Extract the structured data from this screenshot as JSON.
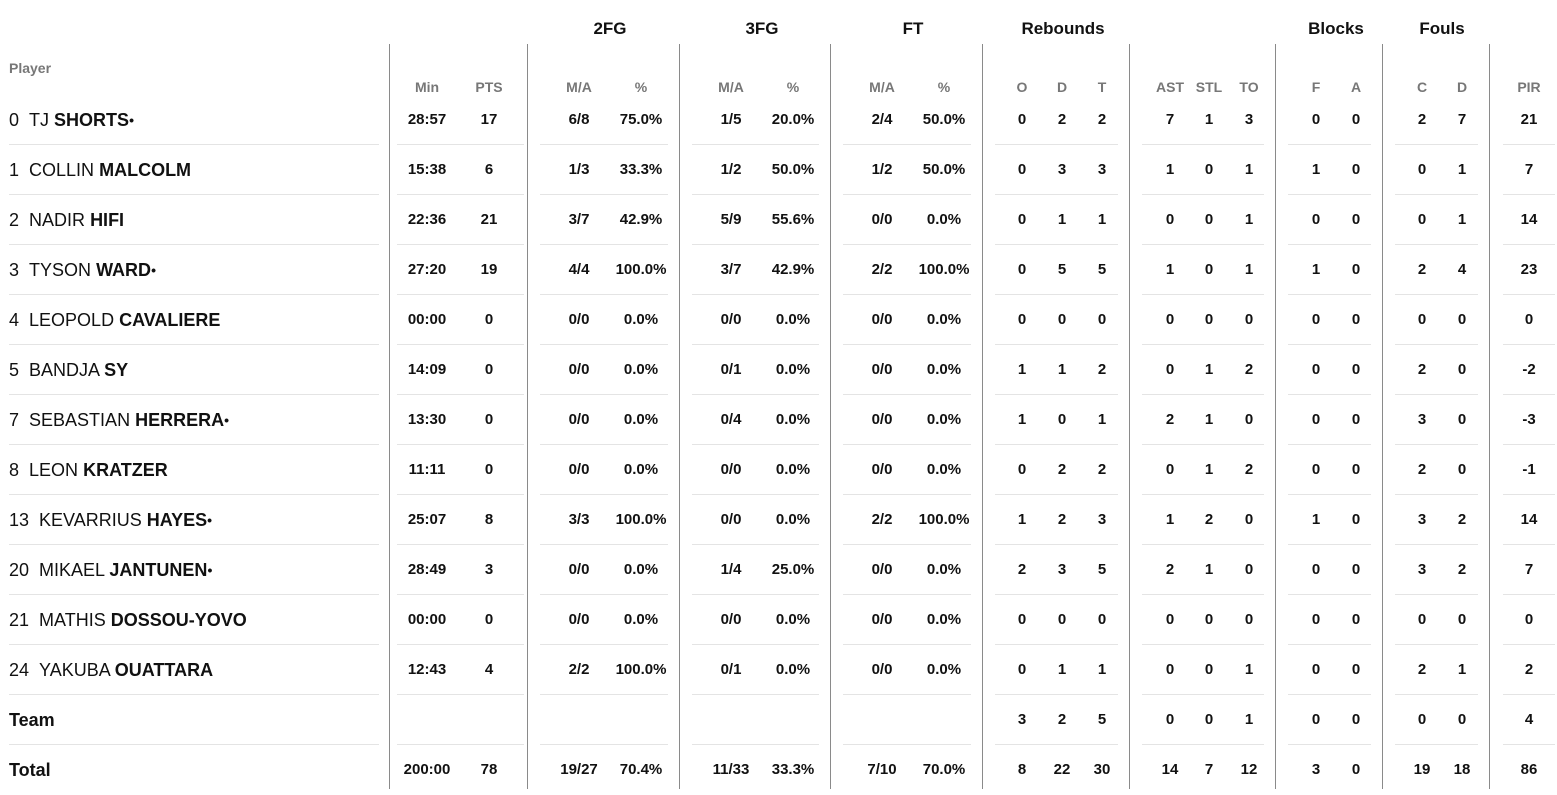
{
  "header": {
    "player": "Player",
    "groups": {
      "fg2": "2FG",
      "fg3": "3FG",
      "ft": "FT",
      "rebounds": "Rebounds",
      "blocks": "Blocks",
      "fouls": "Fouls"
    },
    "sub": {
      "min": "Min",
      "pts": "PTS",
      "fg2_ma": "M/A",
      "fg2_pct": "%",
      "fg3_ma": "M/A",
      "fg3_pct": "%",
      "ft_ma": "M/A",
      "ft_pct": "%",
      "reb_o": "O",
      "reb_d": "D",
      "reb_t": "T",
      "ast": "AST",
      "stl": "STL",
      "to": "TO",
      "blk_f": "F",
      "blk_a": "A",
      "foul_c": "C",
      "foul_d": "D",
      "pir": "PIR"
    }
  },
  "players": [
    {
      "num": "0",
      "first": "TJ",
      "last": "SHORTS",
      "starter": "•",
      "min": "28:57",
      "pts": "17",
      "fg2_ma": "6/8",
      "fg2_pct": "75.0%",
      "fg3_ma": "1/5",
      "fg3_pct": "20.0%",
      "ft_ma": "2/4",
      "ft_pct": "50.0%",
      "reb_o": "0",
      "reb_d": "2",
      "reb_t": "2",
      "ast": "7",
      "stl": "1",
      "to": "3",
      "blk_f": "0",
      "blk_a": "0",
      "foul_c": "2",
      "foul_d": "7",
      "pir": "21"
    },
    {
      "num": "1",
      "first": "COLLIN",
      "last": "MALCOLM",
      "starter": "",
      "min": "15:38",
      "pts": "6",
      "fg2_ma": "1/3",
      "fg2_pct": "33.3%",
      "fg3_ma": "1/2",
      "fg3_pct": "50.0%",
      "ft_ma": "1/2",
      "ft_pct": "50.0%",
      "reb_o": "0",
      "reb_d": "3",
      "reb_t": "3",
      "ast": "1",
      "stl": "0",
      "to": "1",
      "blk_f": "1",
      "blk_a": "0",
      "foul_c": "0",
      "foul_d": "1",
      "pir": "7"
    },
    {
      "num": "2",
      "first": "NADIR",
      "last": "HIFI",
      "starter": "",
      "min": "22:36",
      "pts": "21",
      "fg2_ma": "3/7",
      "fg2_pct": "42.9%",
      "fg3_ma": "5/9",
      "fg3_pct": "55.6%",
      "ft_ma": "0/0",
      "ft_pct": "0.0%",
      "reb_o": "0",
      "reb_d": "1",
      "reb_t": "1",
      "ast": "0",
      "stl": "0",
      "to": "1",
      "blk_f": "0",
      "blk_a": "0",
      "foul_c": "0",
      "foul_d": "1",
      "pir": "14"
    },
    {
      "num": "3",
      "first": "TYSON",
      "last": "WARD",
      "starter": "•",
      "min": "27:20",
      "pts": "19",
      "fg2_ma": "4/4",
      "fg2_pct": "100.0%",
      "fg3_ma": "3/7",
      "fg3_pct": "42.9%",
      "ft_ma": "2/2",
      "ft_pct": "100.0%",
      "reb_o": "0",
      "reb_d": "5",
      "reb_t": "5",
      "ast": "1",
      "stl": "0",
      "to": "1",
      "blk_f": "1",
      "blk_a": "0",
      "foul_c": "2",
      "foul_d": "4",
      "pir": "23"
    },
    {
      "num": "4",
      "first": "LEOPOLD",
      "last": "CAVALIERE",
      "starter": "",
      "min": "00:00",
      "pts": "0",
      "fg2_ma": "0/0",
      "fg2_pct": "0.0%",
      "fg3_ma": "0/0",
      "fg3_pct": "0.0%",
      "ft_ma": "0/0",
      "ft_pct": "0.0%",
      "reb_o": "0",
      "reb_d": "0",
      "reb_t": "0",
      "ast": "0",
      "stl": "0",
      "to": "0",
      "blk_f": "0",
      "blk_a": "0",
      "foul_c": "0",
      "foul_d": "0",
      "pir": "0"
    },
    {
      "num": "5",
      "first": "BANDJA",
      "last": "SY",
      "starter": "",
      "min": "14:09",
      "pts": "0",
      "fg2_ma": "0/0",
      "fg2_pct": "0.0%",
      "fg3_ma": "0/1",
      "fg3_pct": "0.0%",
      "ft_ma": "0/0",
      "ft_pct": "0.0%",
      "reb_o": "1",
      "reb_d": "1",
      "reb_t": "2",
      "ast": "0",
      "stl": "1",
      "to": "2",
      "blk_f": "0",
      "blk_a": "0",
      "foul_c": "2",
      "foul_d": "0",
      "pir": "-2"
    },
    {
      "num": "7",
      "first": "SEBASTIAN",
      "last": "HERRERA",
      "starter": "•",
      "min": "13:30",
      "pts": "0",
      "fg2_ma": "0/0",
      "fg2_pct": "0.0%",
      "fg3_ma": "0/4",
      "fg3_pct": "0.0%",
      "ft_ma": "0/0",
      "ft_pct": "0.0%",
      "reb_o": "1",
      "reb_d": "0",
      "reb_t": "1",
      "ast": "2",
      "stl": "1",
      "to": "0",
      "blk_f": "0",
      "blk_a": "0",
      "foul_c": "3",
      "foul_d": "0",
      "pir": "-3"
    },
    {
      "num": "8",
      "first": "LEON",
      "last": "KRATZER",
      "starter": "",
      "min": "11:11",
      "pts": "0",
      "fg2_ma": "0/0",
      "fg2_pct": "0.0%",
      "fg3_ma": "0/0",
      "fg3_pct": "0.0%",
      "ft_ma": "0/0",
      "ft_pct": "0.0%",
      "reb_o": "0",
      "reb_d": "2",
      "reb_t": "2",
      "ast": "0",
      "stl": "1",
      "to": "2",
      "blk_f": "0",
      "blk_a": "0",
      "foul_c": "2",
      "foul_d": "0",
      "pir": "-1"
    },
    {
      "num": "13",
      "first": "KEVARRIUS",
      "last": "HAYES",
      "starter": "•",
      "min": "25:07",
      "pts": "8",
      "fg2_ma": "3/3",
      "fg2_pct": "100.0%",
      "fg3_ma": "0/0",
      "fg3_pct": "0.0%",
      "ft_ma": "2/2",
      "ft_pct": "100.0%",
      "reb_o": "1",
      "reb_d": "2",
      "reb_t": "3",
      "ast": "1",
      "stl": "2",
      "to": "0",
      "blk_f": "1",
      "blk_a": "0",
      "foul_c": "3",
      "foul_d": "2",
      "pir": "14"
    },
    {
      "num": "20",
      "first": "MIKAEL",
      "last": "JANTUNEN",
      "starter": "•",
      "min": "28:49",
      "pts": "3",
      "fg2_ma": "0/0",
      "fg2_pct": "0.0%",
      "fg3_ma": "1/4",
      "fg3_pct": "25.0%",
      "ft_ma": "0/0",
      "ft_pct": "0.0%",
      "reb_o": "2",
      "reb_d": "3",
      "reb_t": "5",
      "ast": "2",
      "stl": "1",
      "to": "0",
      "blk_f": "0",
      "blk_a": "0",
      "foul_c": "3",
      "foul_d": "2",
      "pir": "7"
    },
    {
      "num": "21",
      "first": "MATHIS",
      "last": "DOSSOU-YOVO",
      "starter": "",
      "min": "00:00",
      "pts": "0",
      "fg2_ma": "0/0",
      "fg2_pct": "0.0%",
      "fg3_ma": "0/0",
      "fg3_pct": "0.0%",
      "ft_ma": "0/0",
      "ft_pct": "0.0%",
      "reb_o": "0",
      "reb_d": "0",
      "reb_t": "0",
      "ast": "0",
      "stl": "0",
      "to": "0",
      "blk_f": "0",
      "blk_a": "0",
      "foul_c": "0",
      "foul_d": "0",
      "pir": "0"
    },
    {
      "num": "24",
      "first": "YAKUBA",
      "last": "OUATTARA",
      "starter": "",
      "min": "12:43",
      "pts": "4",
      "fg2_ma": "2/2",
      "fg2_pct": "100.0%",
      "fg3_ma": "0/1",
      "fg3_pct": "0.0%",
      "ft_ma": "0/0",
      "ft_pct": "0.0%",
      "reb_o": "0",
      "reb_d": "1",
      "reb_t": "1",
      "ast": "0",
      "stl": "0",
      "to": "1",
      "blk_f": "0",
      "blk_a": "0",
      "foul_c": "2",
      "foul_d": "1",
      "pir": "2"
    }
  ],
  "team": {
    "label": "Team",
    "min": "",
    "pts": "",
    "fg2_ma": "",
    "fg2_pct": "",
    "fg3_ma": "",
    "fg3_pct": "",
    "ft_ma": "",
    "ft_pct": "",
    "reb_o": "3",
    "reb_d": "2",
    "reb_t": "5",
    "ast": "0",
    "stl": "0",
    "to": "1",
    "blk_f": "0",
    "blk_a": "0",
    "foul_c": "0",
    "foul_d": "0",
    "pir": "4"
  },
  "total": {
    "label": "Total",
    "min": "200:00",
    "pts": "78",
    "fg2_ma": "19/27",
    "fg2_pct": "70.4%",
    "fg3_ma": "11/33",
    "fg3_pct": "33.3%",
    "ft_ma": "7/10",
    "ft_pct": "70.0%",
    "reb_o": "8",
    "reb_d": "22",
    "reb_t": "30",
    "ast": "14",
    "stl": "7",
    "to": "12",
    "blk_f": "3",
    "blk_a": "0",
    "foul_c": "19",
    "foul_d": "18",
    "pir": "86"
  }
}
